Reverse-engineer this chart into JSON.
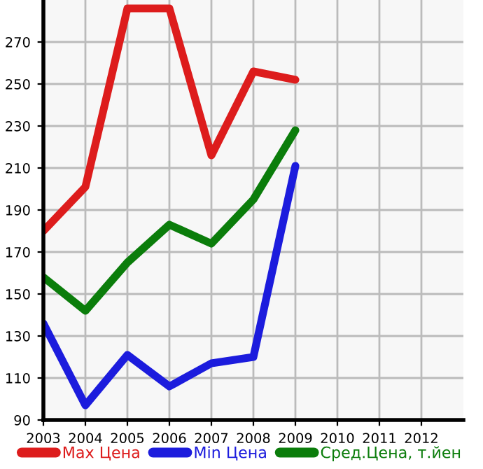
{
  "chart_data": {
    "type": "line",
    "x": [
      2003,
      2004,
      2005,
      2006,
      2007,
      2008,
      2009
    ],
    "series": [
      {
        "name": "Max Цена",
        "color": "#dd1c1c",
        "values": [
          180,
          201,
          286,
          286,
          216,
          256,
          252
        ]
      },
      {
        "name": "Min Цена",
        "color": "#1c1cdd",
        "values": [
          136,
          97,
          121,
          106,
          117,
          120,
          211
        ]
      },
      {
        "name": "Сред.Цена, т.йен",
        "color": "#0b7d0b",
        "values": [
          158,
          142,
          165,
          183,
          174,
          195,
          228
        ]
      }
    ],
    "xlim": [
      2003,
      2013
    ],
    "xticks": [
      2003,
      2004,
      2005,
      2006,
      2007,
      2008,
      2009,
      2010,
      2011,
      2012
    ],
    "ylim": [
      90,
      290
    ],
    "yticks": [
      90,
      110,
      130,
      150,
      170,
      190,
      210,
      230,
      250,
      270
    ],
    "grid": true,
    "legend": "bottom",
    "marker": "none",
    "line_style": "solid"
  }
}
